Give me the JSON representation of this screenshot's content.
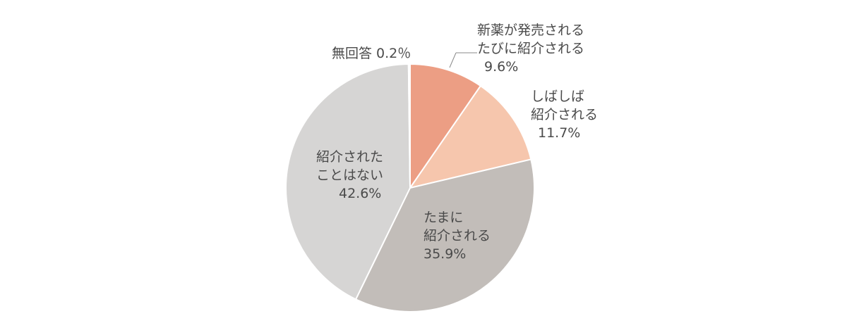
{
  "chart_data": {
    "type": "pie",
    "slices": [
      {
        "lines": [
          "新薬が発売される",
          "たびに紹介される",
          "9.6%"
        ],
        "value": 9.6,
        "color": "#ec9e84"
      },
      {
        "lines": [
          "しばしば",
          "紹介される",
          "11.7%"
        ],
        "value": 11.7,
        "color": "#f6c6ad"
      },
      {
        "lines": [
          "たまに",
          "紹介される",
          "35.9%"
        ],
        "value": 35.9,
        "color": "#c2bdb9"
      },
      {
        "lines": [
          "紹介された",
          "ことはない",
          "42.6%"
        ],
        "value": 42.6,
        "color": "#d6d5d4"
      },
      {
        "lines": [
          "無回答 0.2％"
        ],
        "value": 0.2,
        "color": "#e9e7e5"
      }
    ]
  }
}
